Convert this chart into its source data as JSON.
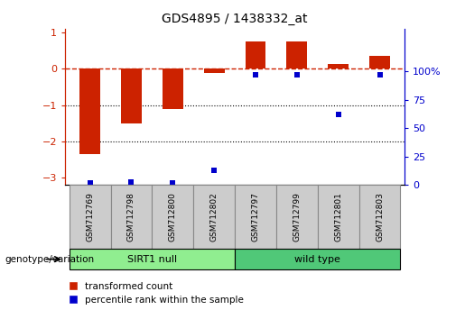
{
  "title": "GDS4895 / 1438332_at",
  "samples": [
    "GSM712769",
    "GSM712798",
    "GSM712800",
    "GSM712802",
    "GSM712797",
    "GSM712799",
    "GSM712801",
    "GSM712803"
  ],
  "red_values": [
    -2.35,
    -1.5,
    -1.1,
    -0.12,
    0.75,
    0.75,
    0.12,
    0.35
  ],
  "blue_values": [
    2,
    3,
    2,
    13,
    97,
    97,
    62,
    97
  ],
  "groups": [
    {
      "label": "SIRT1 null",
      "start": 0,
      "end": 4,
      "color": "#90EE90"
    },
    {
      "label": "wild type",
      "start": 4,
      "end": 8,
      "color": "#50C878"
    }
  ],
  "ylim_left": [
    -3.2,
    1.1
  ],
  "ylim_right": [
    0,
    137.5
  ],
  "yticks_left": [
    -3,
    -2,
    -1,
    0,
    1
  ],
  "yticks_right": [
    0,
    25,
    50,
    75,
    100
  ],
  "yticklabels_right": [
    "0",
    "25",
    "50",
    "75",
    "100%"
  ],
  "dotted_lines": [
    -1,
    -2
  ],
  "red_color": "#CC2200",
  "blue_color": "#0000CC",
  "bar_width": 0.5,
  "legend_red": "transformed count",
  "legend_blue": "percentile rank within the sample",
  "genotype_label": "genotype/variation",
  "sample_box_color": "#CCCCCC",
  "sample_box_edge": "#888888"
}
